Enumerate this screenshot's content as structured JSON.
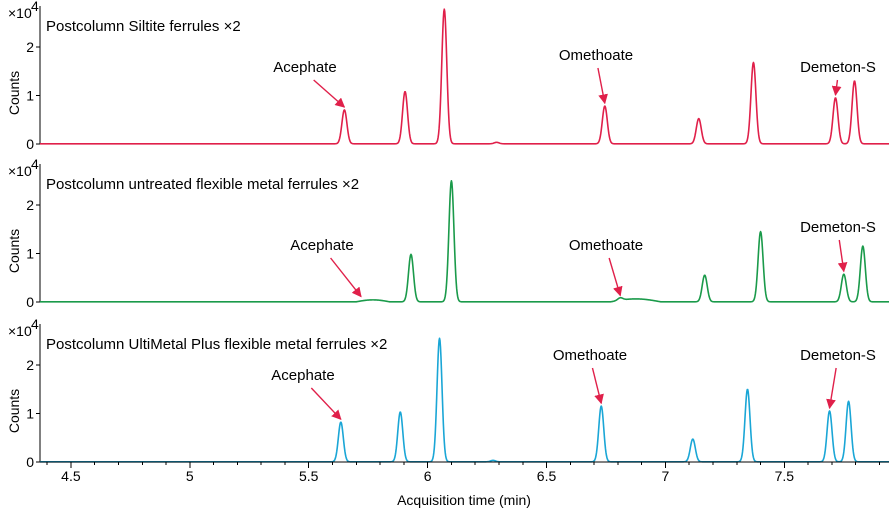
{
  "chart_data": {
    "type": "line",
    "xlabel": "Acquisition time (min)",
    "xlim": [
      4.37,
      7.94
    ],
    "x_ticks": [
      4.5,
      5,
      5.5,
      6,
      6.5,
      7,
      7.5
    ],
    "x_tick_labels": [
      "4.5",
      "5",
      "5.5",
      "6",
      "6.5",
      "7",
      "7.5"
    ],
    "ylabel": "Counts",
    "y_scale_label": "×10",
    "y_scale_exponent": "4",
    "panels": [
      {
        "title": "Postcolumn Siltite ferrules ×2",
        "color": "#e0204a",
        "ylim": [
          0,
          2.85
        ],
        "y_ticks": [
          0,
          1,
          2
        ],
        "y_tick_labels": [
          "0",
          "1",
          "2"
        ],
        "baseline_bumps": [],
        "peaks": [
          {
            "x": 5.65,
            "y": 0.7
          },
          {
            "x": 5.905,
            "y": 1.08
          },
          {
            "x": 6.07,
            "y": 2.78
          },
          {
            "x": 6.29,
            "y": 0.03
          },
          {
            "x": 6.745,
            "y": 0.78
          },
          {
            "x": 7.14,
            "y": 0.52
          },
          {
            "x": 7.37,
            "y": 1.68
          },
          {
            "x": 7.715,
            "y": 0.95
          },
          {
            "x": 7.795,
            "y": 1.3
          }
        ],
        "annotations": [
          {
            "label": "Acephate",
            "x": 5.65,
            "y": 0.7
          },
          {
            "label": "Omethoate",
            "x": 6.745,
            "y": 0.78
          },
          {
            "label": "Demeton-S",
            "x": 7.715,
            "y": 0.95
          }
        ]
      },
      {
        "title": "Postcolumn untreated flexible metal ferrules ×2",
        "color": "#1a9a4a",
        "ylim": [
          0,
          2.85
        ],
        "y_ticks": [
          0,
          1,
          2
        ],
        "y_tick_labels": [
          "0",
          "1",
          "2"
        ],
        "baseline_bumps": [
          {
            "x0": 5.7,
            "x1": 5.84,
            "y": 0.04
          },
          {
            "x0": 6.77,
            "x1": 6.98,
            "y": 0.06
          }
        ],
        "peaks": [
          {
            "x": 5.93,
            "y": 0.98
          },
          {
            "x": 6.1,
            "y": 2.5
          },
          {
            "x": 6.81,
            "y": 0.05
          },
          {
            "x": 7.165,
            "y": 0.55
          },
          {
            "x": 7.4,
            "y": 1.45
          },
          {
            "x": 7.75,
            "y": 0.57
          },
          {
            "x": 7.83,
            "y": 1.15
          }
        ],
        "annotations": [
          {
            "label": "Acephate",
            "x": 5.72,
            "y": 0.05
          },
          {
            "label": "Omethoate",
            "x": 6.81,
            "y": 0.07
          },
          {
            "label": "Demeton-S",
            "x": 7.75,
            "y": 0.57
          }
        ]
      },
      {
        "title": "Postcolumn UltiMetal Plus flexible metal ferrules ×2",
        "color": "#1aa6d6",
        "ylim": [
          0,
          2.85
        ],
        "y_ticks": [
          0,
          1,
          2
        ],
        "y_tick_labels": [
          "0",
          "1",
          "2"
        ],
        "baseline_bumps": [],
        "peaks": [
          {
            "x": 5.635,
            "y": 0.82
          },
          {
            "x": 5.885,
            "y": 1.03
          },
          {
            "x": 6.05,
            "y": 2.55
          },
          {
            "x": 6.275,
            "y": 0.03
          },
          {
            "x": 6.73,
            "y": 1.15
          },
          {
            "x": 7.115,
            "y": 0.47
          },
          {
            "x": 7.345,
            "y": 1.5
          },
          {
            "x": 7.69,
            "y": 1.05
          },
          {
            "x": 7.77,
            "y": 1.25
          }
        ],
        "annotations": [
          {
            "label": "Acephate",
            "x": 5.635,
            "y": 0.82
          },
          {
            "label": "Omethoate",
            "x": 6.73,
            "y": 1.15
          },
          {
            "label": "Demeton-S",
            "x": 7.69,
            "y": 1.05
          }
        ]
      }
    ]
  }
}
